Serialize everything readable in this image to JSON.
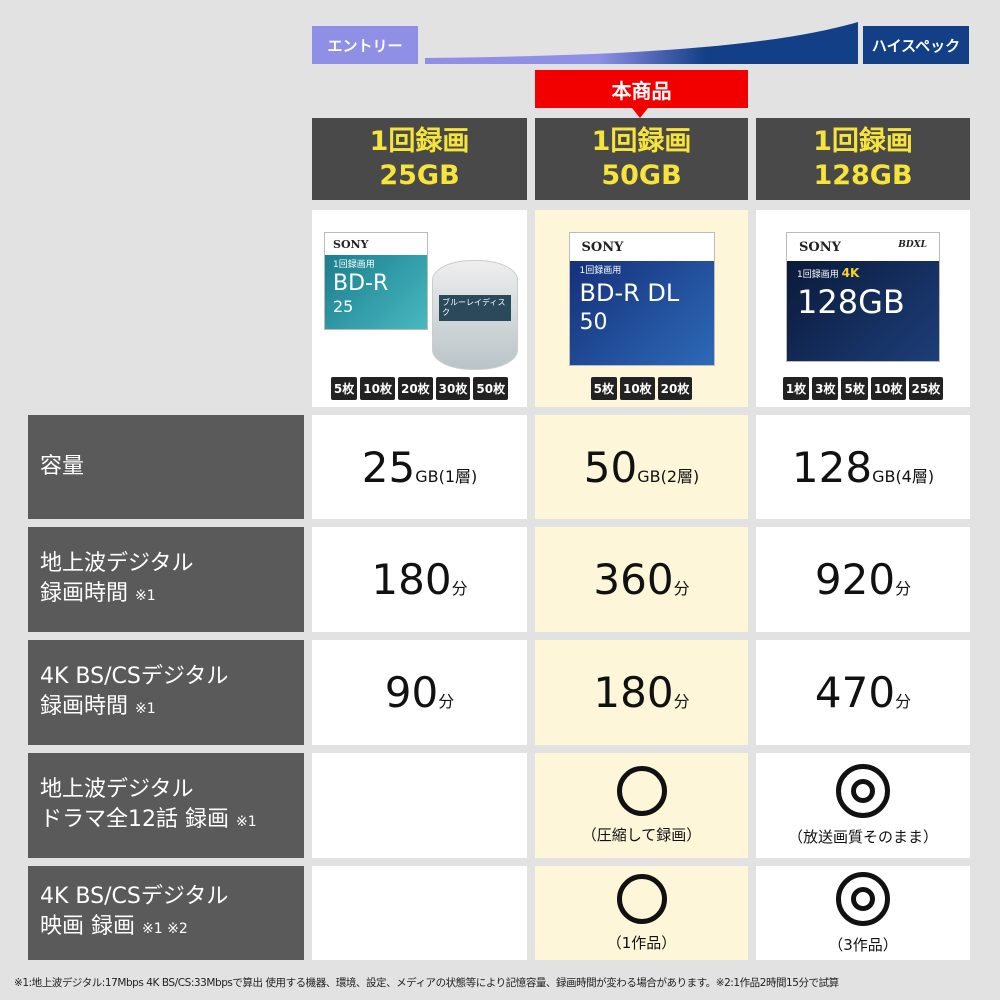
{
  "tiers": {
    "entry": "エントリー",
    "high": "ハイスペック",
    "entry_color": "#8f8fe6",
    "high_color": "#123f86"
  },
  "featured_label": "本商品",
  "products": [
    {
      "title1": "1回録画",
      "title2": "25GB",
      "box": {
        "brand": "SONY",
        "line1": "1回録画用",
        "name": "BD-R",
        "cap": "25",
        "spindle": "ブルーレイディスク"
      },
      "packs": [
        "5枚",
        "10枚",
        "20枚",
        "30枚",
        "50枚"
      ]
    },
    {
      "title1": "1回録画",
      "title2": "50GB",
      "box": {
        "brand": "SONY",
        "line1": "1回録画用",
        "name": "BD-R DL",
        "cap": "50",
        "pack": "5"
      },
      "packs": [
        "5枚",
        "10枚",
        "20枚"
      ]
    },
    {
      "title1": "1回録画",
      "title2": "128GB",
      "box": {
        "brand": "SONY",
        "line1": "1回録画用",
        "name": "128GB",
        "badge": "4K",
        "pack": "5",
        "logo": "BDXL"
      },
      "packs": [
        "1枚",
        "3枚",
        "5枚",
        "10枚",
        "25枚"
      ]
    }
  ],
  "rows": [
    {
      "label1": "容量",
      "label2": "",
      "note": "",
      "cells": [
        {
          "num": "25",
          "unit": "GB(1層)"
        },
        {
          "num": "50",
          "unit": "GB(2層)"
        },
        {
          "num": "128",
          "unit": "GB(4層)"
        }
      ]
    },
    {
      "label1": "地上波デジタル",
      "label2": "録画時間",
      "note": "※1",
      "cells": [
        {
          "num": "180",
          "unit": "分"
        },
        {
          "num": "360",
          "unit": "分"
        },
        {
          "num": "920",
          "unit": "分"
        }
      ]
    },
    {
      "label1": "4K BS/CSデジタル",
      "label2": "録画時間",
      "note": "※1",
      "cells": [
        {
          "num": "90",
          "unit": "分"
        },
        {
          "num": "180",
          "unit": "分"
        },
        {
          "num": "470",
          "unit": "分"
        }
      ]
    },
    {
      "label1": "地上波デジタル",
      "label2": "ドラマ全12話 録画",
      "note": "※1",
      "cells": [
        {
          "mark": "none"
        },
        {
          "mark": "circle",
          "text": "（圧縮して録画）"
        },
        {
          "mark": "double-circle",
          "text": "（放送画質そのまま）"
        }
      ]
    },
    {
      "label1": "4K BS/CSデジタル",
      "label2": "映画 録画",
      "note": "※1 ※2",
      "cells": [
        {
          "mark": "none"
        },
        {
          "mark": "circle",
          "text": "（1作品）"
        },
        {
          "mark": "double-circle",
          "text": "（3作品）"
        }
      ]
    }
  ],
  "footnote": "※1:地上波デジタル:17Mbps 4K BS/CS:33Mbpsで算出 使用する機器、環境、設定、メディアの状態等により記憶容量、録画時間が変わる場合があります。※2:1作品2時間15分で試算"
}
